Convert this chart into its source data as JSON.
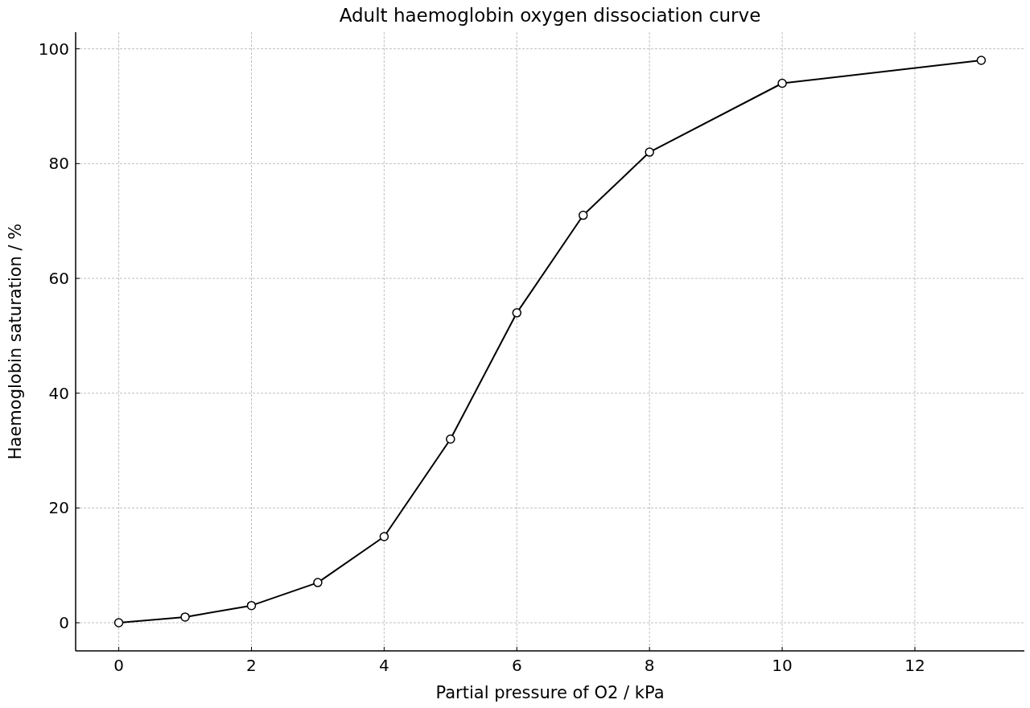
{
  "chart_data": {
    "type": "line",
    "title": "Adult haemoglobin oxygen dissociation curve",
    "xlabel": "Partial pressure of O2 / kPa",
    "ylabel": "Haemoglobin saturation / %",
    "x": [
      0,
      1,
      2,
      3,
      4,
      5,
      6,
      7,
      8,
      10,
      13
    ],
    "series": [
      {
        "color": "#000000",
        "values": [
          0,
          1,
          3,
          7,
          15,
          32,
          54,
          71,
          82,
          94,
          98
        ]
      }
    ],
    "xlim": [
      -0.65,
      13.65
    ],
    "ylim": [
      -4.9,
      102.9
    ],
    "xticks": [
      0,
      2,
      4,
      6,
      8,
      10,
      12
    ],
    "yticks": [
      0,
      20,
      40,
      60,
      80,
      100
    ],
    "grid": true,
    "marker": "circle",
    "line_style": "solid"
  }
}
